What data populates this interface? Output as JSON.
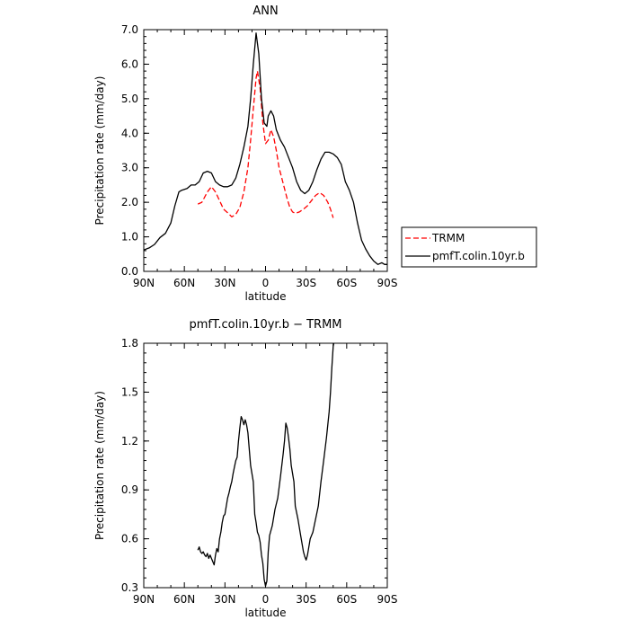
{
  "chart_data": [
    {
      "type": "line",
      "title": "ANN",
      "xlabel": "latitude",
      "ylabel": "Precipitation rate (mm/day)",
      "xlim": [
        90,
        -90
      ],
      "ylim": [
        0,
        7
      ],
      "x_ticks": [
        90,
        60,
        30,
        0,
        -30,
        -60,
        -90
      ],
      "x_tick_labels": [
        "90N",
        "60N",
        "30N",
        "0",
        "30S",
        "60S",
        "90S"
      ],
      "y_ticks": [
        0,
        1,
        2,
        3,
        4,
        5,
        6,
        7
      ],
      "y_tick_labels": [
        "0.0",
        "1.0",
        "2.0",
        "3.0",
        "4.0",
        "5.0",
        "6.0",
        "7.0"
      ],
      "legend_position": "right",
      "series": [
        {
          "name": "TRMM",
          "color": "#ff0000",
          "dash": "dashed",
          "points": [
            [
              50,
              1.95
            ],
            [
              47,
              2.0
            ],
            [
              43,
              2.3
            ],
            [
              40,
              2.45
            ],
            [
              37,
              2.3
            ],
            [
              34,
              2.05
            ],
            [
              31,
              1.8
            ],
            [
              28,
              1.7
            ],
            [
              25,
              1.58
            ],
            [
              22,
              1.65
            ],
            [
              19,
              1.85
            ],
            [
              16,
              2.3
            ],
            [
              13,
              3.0
            ],
            [
              11,
              3.8
            ],
            [
              9,
              4.7
            ],
            [
              7,
              5.6
            ],
            [
              6,
              5.8
            ],
            [
              4,
              5.3
            ],
            [
              2,
              4.3
            ],
            [
              0,
              3.7
            ],
            [
              -2,
              3.8
            ],
            [
              -4,
              4.1
            ],
            [
              -6,
              3.9
            ],
            [
              -8,
              3.5
            ],
            [
              -10,
              3.0
            ],
            [
              -12,
              2.7
            ],
            [
              -14,
              2.4
            ],
            [
              -16,
              2.1
            ],
            [
              -18,
              1.85
            ],
            [
              -20,
              1.72
            ],
            [
              -22,
              1.68
            ],
            [
              -25,
              1.72
            ],
            [
              -28,
              1.8
            ],
            [
              -31,
              1.9
            ],
            [
              -34,
              2.05
            ],
            [
              -37,
              2.2
            ],
            [
              -40,
              2.28
            ],
            [
              -43,
              2.2
            ],
            [
              -46,
              2.0
            ],
            [
              -48,
              1.8
            ],
            [
              -50,
              1.55
            ]
          ]
        },
        {
          "name": "pmfT.colin.10yr.b",
          "color": "#000000",
          "dash": "solid",
          "points": [
            [
              90,
              0.62
            ],
            [
              86,
              0.68
            ],
            [
              82,
              0.78
            ],
            [
              78,
              0.98
            ],
            [
              74,
              1.1
            ],
            [
              70,
              1.4
            ],
            [
              67,
              1.9
            ],
            [
              64,
              2.3
            ],
            [
              62,
              2.35
            ],
            [
              58,
              2.4
            ],
            [
              55,
              2.5
            ],
            [
              52,
              2.5
            ],
            [
              49,
              2.6
            ],
            [
              46,
              2.85
            ],
            [
              43,
              2.9
            ],
            [
              40,
              2.85
            ],
            [
              37,
              2.6
            ],
            [
              34,
              2.5
            ],
            [
              31,
              2.45
            ],
            [
              28,
              2.45
            ],
            [
              25,
              2.5
            ],
            [
              22,
              2.7
            ],
            [
              19,
              3.1
            ],
            [
              16,
              3.6
            ],
            [
              13,
              4.2
            ],
            [
              11,
              5.0
            ],
            [
              9,
              6.0
            ],
            [
              7,
              6.9
            ],
            [
              5,
              6.3
            ],
            [
              3,
              5.0
            ],
            [
              1,
              4.3
            ],
            [
              -1,
              4.2
            ],
            [
              -2,
              4.5
            ],
            [
              -4,
              4.65
            ],
            [
              -6,
              4.5
            ],
            [
              -8,
              4.1
            ],
            [
              -11,
              3.8
            ],
            [
              -14,
              3.6
            ],
            [
              -17,
              3.3
            ],
            [
              -20,
              3.0
            ],
            [
              -23,
              2.6
            ],
            [
              -26,
              2.35
            ],
            [
              -29,
              2.25
            ],
            [
              -32,
              2.35
            ],
            [
              -35,
              2.6
            ],
            [
              -38,
              2.95
            ],
            [
              -41,
              3.25
            ],
            [
              -44,
              3.45
            ],
            [
              -47,
              3.45
            ],
            [
              -50,
              3.4
            ],
            [
              -53,
              3.3
            ],
            [
              -56,
              3.1
            ],
            [
              -59,
              2.6
            ],
            [
              -62,
              2.35
            ],
            [
              -65,
              2.0
            ],
            [
              -68,
              1.4
            ],
            [
              -71,
              0.9
            ],
            [
              -74,
              0.65
            ],
            [
              -77,
              0.45
            ],
            [
              -80,
              0.3
            ],
            [
              -83,
              0.2
            ],
            [
              -86,
              0.25
            ],
            [
              -88,
              0.2
            ],
            [
              -90,
              0.2
            ]
          ]
        }
      ]
    },
    {
      "type": "line",
      "title": "pmfT.colin.10yr.b − TRMM",
      "xlabel": "latitude",
      "ylabel": "Precipitation rate (mm/day)",
      "xlim": [
        90,
        -90
      ],
      "ylim": [
        0.3,
        1.8
      ],
      "x_ticks": [
        90,
        60,
        30,
        0,
        -30,
        -60,
        -90
      ],
      "x_tick_labels": [
        "90N",
        "60N",
        "30N",
        "0",
        "30S",
        "60S",
        "90S"
      ],
      "y_ticks": [
        0.3,
        0.6,
        0.9,
        1.2,
        1.5,
        1.8
      ],
      "y_tick_labels": [
        "0.3",
        "0.6",
        "0.9",
        "1.2",
        "1.5",
        "1.8"
      ],
      "series": [
        {
          "color": "#000000",
          "dash": "solid",
          "points": [
            [
              50,
              0.53
            ],
            [
              49,
              0.55
            ],
            [
              48,
              0.52
            ],
            [
              47,
              0.51
            ],
            [
              46,
              0.52
            ],
            [
              45,
              0.5
            ],
            [
              44,
              0.49
            ],
            [
              43,
              0.51
            ],
            [
              42,
              0.48
            ],
            [
              41,
              0.5
            ],
            [
              40,
              0.48
            ],
            [
              39,
              0.46
            ],
            [
              38,
              0.44
            ],
            [
              37,
              0.5
            ],
            [
              36,
              0.54
            ],
            [
              35,
              0.52
            ],
            [
              34,
              0.6
            ],
            [
              33,
              0.64
            ],
            [
              32,
              0.7
            ],
            [
              31,
              0.74
            ],
            [
              30,
              0.75
            ],
            [
              29,
              0.8
            ],
            [
              28,
              0.85
            ],
            [
              27,
              0.88
            ],
            [
              26,
              0.92
            ],
            [
              25,
              0.95
            ],
            [
              24,
              1.0
            ],
            [
              23,
              1.04
            ],
            [
              22,
              1.08
            ],
            [
              21,
              1.1
            ],
            [
              20,
              1.2
            ],
            [
              19,
              1.28
            ],
            [
              18,
              1.35
            ],
            [
              17,
              1.33
            ],
            [
              16,
              1.3
            ],
            [
              15,
              1.33
            ],
            [
              14,
              1.3
            ],
            [
              13,
              1.25
            ],
            [
              12,
              1.15
            ],
            [
              11,
              1.05
            ],
            [
              10,
              1.0
            ],
            [
              9,
              0.95
            ],
            [
              8,
              0.75
            ],
            [
              7,
              0.7
            ],
            [
              6,
              0.64
            ],
            [
              5,
              0.62
            ],
            [
              4,
              0.58
            ],
            [
              3,
              0.5
            ],
            [
              2,
              0.45
            ],
            [
              1,
              0.35
            ],
            [
              0,
              0.31
            ],
            [
              -1,
              0.34
            ],
            [
              -2,
              0.52
            ],
            [
              -3,
              0.62
            ],
            [
              -5,
              0.68
            ],
            [
              -7,
              0.78
            ],
            [
              -9,
              0.85
            ],
            [
              -11,
              0.98
            ],
            [
              -12,
              1.05
            ],
            [
              -13,
              1.12
            ],
            [
              -14,
              1.2
            ],
            [
              -15,
              1.31
            ],
            [
              -16,
              1.28
            ],
            [
              -17,
              1.22
            ],
            [
              -18,
              1.15
            ],
            [
              -19,
              1.05
            ],
            [
              -21,
              0.95
            ],
            [
              -22,
              0.8
            ],
            [
              -24,
              0.72
            ],
            [
              -26,
              0.62
            ],
            [
              -28,
              0.52
            ],
            [
              -29,
              0.49
            ],
            [
              -30,
              0.47
            ],
            [
              -31,
              0.5
            ],
            [
              -32,
              0.55
            ],
            [
              -33,
              0.6
            ],
            [
              -35,
              0.64
            ],
            [
              -37,
              0.72
            ],
            [
              -39,
              0.8
            ],
            [
              -41,
              0.95
            ],
            [
              -43,
              1.08
            ],
            [
              -45,
              1.22
            ],
            [
              -47,
              1.38
            ],
            [
              -48,
              1.5
            ],
            [
              -49,
              1.65
            ],
            [
              -50,
              1.78
            ],
            [
              -50.5,
              1.8
            ]
          ]
        }
      ]
    }
  ]
}
